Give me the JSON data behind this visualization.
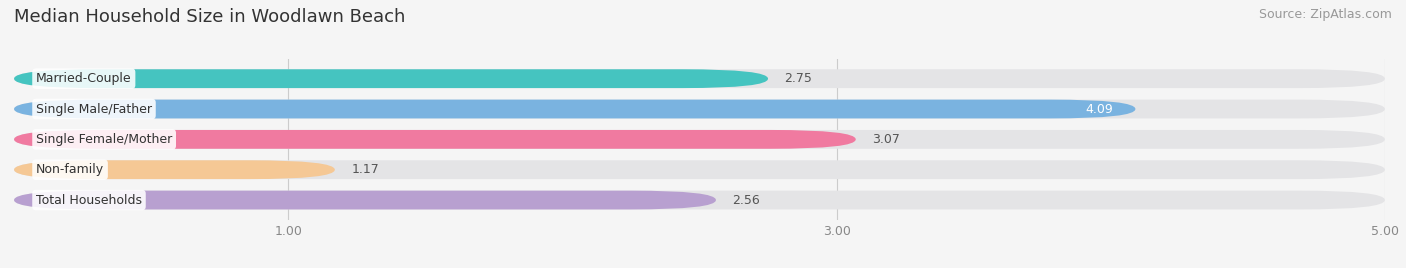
{
  "title": "Median Household Size in Woodlawn Beach",
  "source": "Source: ZipAtlas.com",
  "categories": [
    "Married-Couple",
    "Single Male/Father",
    "Single Female/Mother",
    "Non-family",
    "Total Households"
  ],
  "values": [
    2.75,
    4.09,
    3.07,
    1.17,
    2.56
  ],
  "bar_colors": [
    "#45c4c0",
    "#7ab3e0",
    "#f07aa0",
    "#f5c895",
    "#b8a0d0"
  ],
  "value_inside": [
    false,
    true,
    false,
    false,
    false
  ],
  "bar_bg_color": "#e8e8e8",
  "xlim": [
    0,
    5.0
  ],
  "xticks": [
    1.0,
    3.0,
    5.0
  ],
  "title_fontsize": 13,
  "source_fontsize": 9,
  "label_fontsize": 9,
  "value_fontsize": 9,
  "background_color": "#f5f5f5",
  "bar_height": 0.62,
  "bar_gap": 0.38
}
